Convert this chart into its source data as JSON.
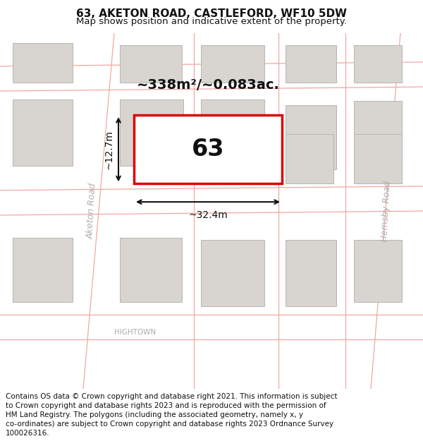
{
  "title_line1": "63, AKETON ROAD, CASTLEFORD, WF10 5DW",
  "title_line2": "Map shows position and indicative extent of the property.",
  "area_label": "~338m²/~0.083ac.",
  "width_label": "~32.4m",
  "height_label": "~12.7m",
  "property_number": "63",
  "map_bg": "#f5f3f0",
  "road_line_color": "#f0a8a0",
  "building_fill": "#d8d5d0",
  "building_edge": "#b8b5b0",
  "highlight_rect_color": "#dd0000",
  "highlight_rect_fill": "#ffffff",
  "road_label_color": "#b0b0b0",
  "hightown_color": "#aaaaaa",
  "annotation_color": "#111111",
  "title_fontsize": 11,
  "subtitle_fontsize": 9.5,
  "footer_fontsize": 7.5,
  "footer_lines": [
    "Contains OS data © Crown copyright and database right 2021. This information is subject",
    "to Crown copyright and database rights 2023 and is reproduced with the permission of",
    "HM Land Registry. The polygons (including the associated geometry, namely x, y",
    "co-ordinates) are subject to Crown copyright and database rights 2023 Ordnance Survey",
    "100026316."
  ]
}
